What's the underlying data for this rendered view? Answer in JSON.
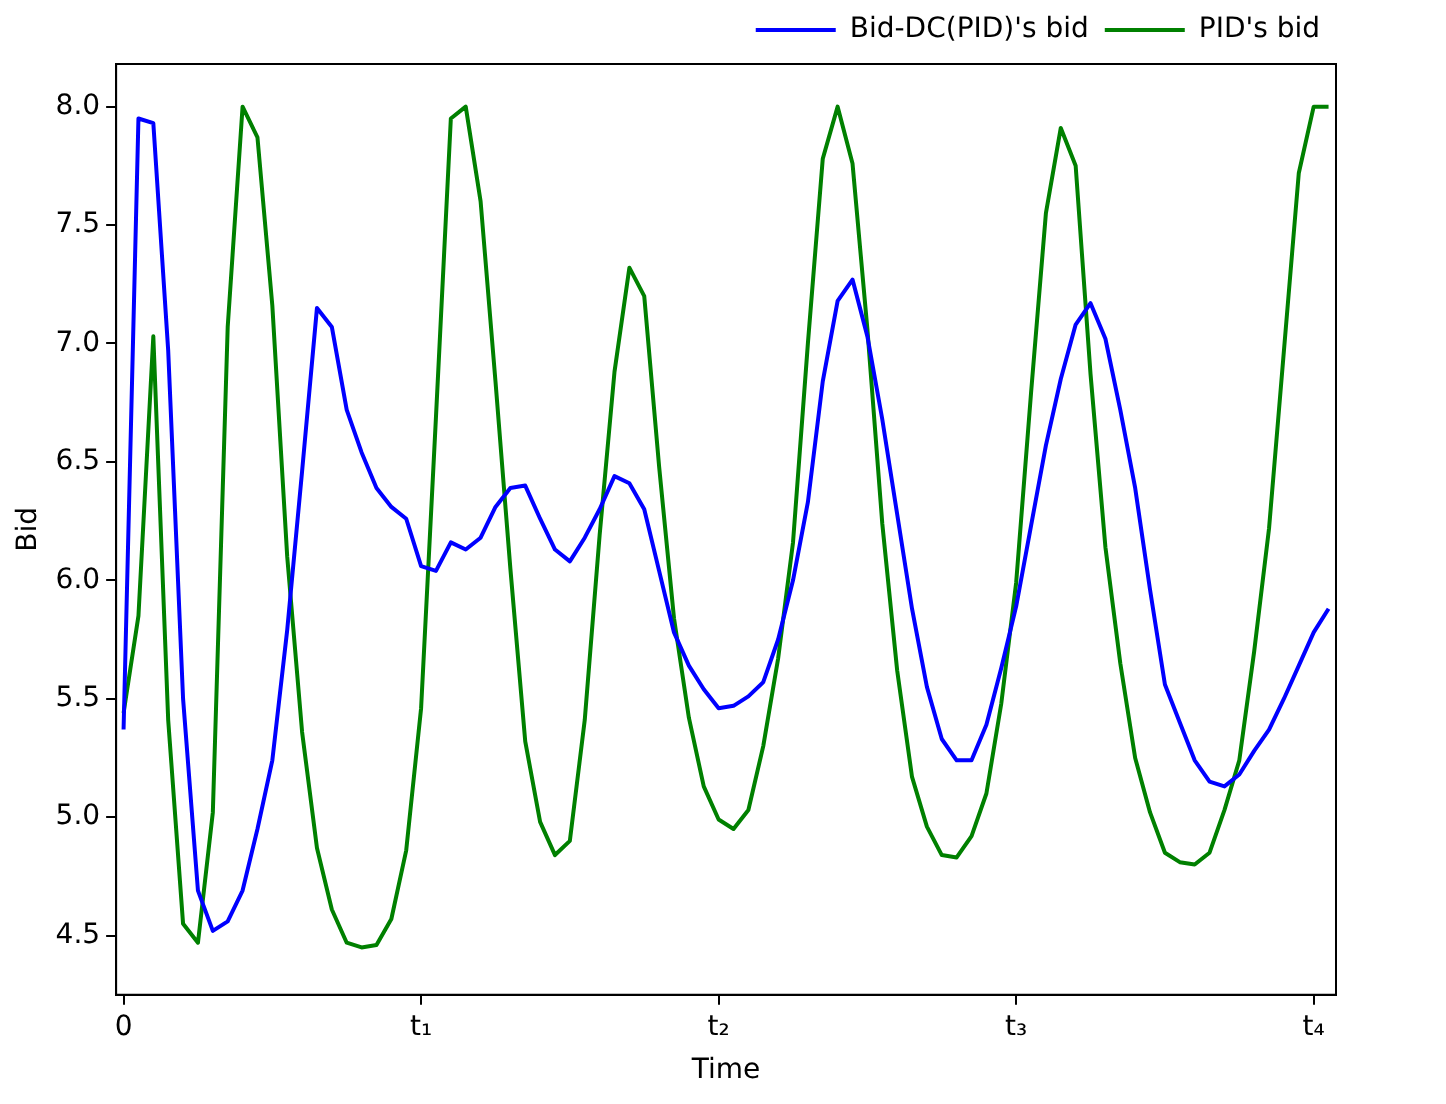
{
  "chart_data": {
    "type": "line",
    "xlabel": "Time",
    "ylabel": "Bid",
    "ylim": [
      4.25,
      8.18
    ],
    "categories": [
      "0",
      null,
      null,
      null,
      null,
      null,
      null,
      null,
      null,
      null,
      null,
      null,
      null,
      null,
      null,
      null,
      null,
      null,
      null,
      null,
      "t₁",
      null,
      null,
      null,
      null,
      null,
      null,
      null,
      null,
      null,
      null,
      null,
      null,
      null,
      null,
      null,
      null,
      null,
      null,
      null,
      "t₂",
      null,
      null,
      null,
      null,
      null,
      null,
      null,
      null,
      null,
      null,
      null,
      null,
      null,
      null,
      null,
      null,
      null,
      null,
      null,
      "t₃",
      null,
      null,
      null,
      null,
      null,
      null,
      null,
      null,
      null,
      null,
      null,
      null,
      null,
      null,
      null,
      null,
      null,
      null,
      null,
      "t₄",
      null
    ],
    "yticks": [
      4.5,
      {
        "value": 5,
        "label": "5.0"
      },
      5.5,
      {
        "value": 6,
        "label": "6.0"
      },
      6.5,
      {
        "value": 7,
        "label": "7.0"
      },
      7.5,
      {
        "value": 8,
        "label": "8.0"
      }
    ],
    "grid": false,
    "legend": "top right",
    "marker": "none",
    "line_style": "solid",
    "series": [
      {
        "name": "Bid-DC(PID)'s bid",
        "color": "#0000ff",
        "values": [
          5.37,
          7.95,
          7.93,
          6.97,
          5.5,
          4.69,
          4.52,
          4.56,
          4.69,
          4.95,
          5.24,
          5.79,
          6.46,
          7.15,
          7.07,
          6.72,
          6.54,
          6.39,
          6.31,
          6.26,
          6.06,
          6.04,
          6.16,
          6.13,
          6.18,
          6.31,
          6.39,
          6.4,
          6.26,
          6.13,
          6.08,
          6.18,
          6.3,
          6.44,
          6.41,
          6.3,
          6.04,
          5.78,
          5.64,
          5.54,
          5.46,
          5.47,
          5.51,
          5.57,
          5.75,
          6.0,
          6.33,
          6.84,
          7.18,
          7.27,
          7.03,
          6.68,
          6.28,
          5.88,
          5.55,
          5.33,
          5.24,
          5.24,
          5.39,
          5.63,
          5.89,
          6.23,
          6.57,
          6.85,
          7.08,
          7.17,
          7.02,
          6.72,
          6.39,
          5.96,
          5.56,
          5.4,
          5.24,
          5.15,
          5.13,
          5.18,
          5.28,
          5.37,
          5.5,
          5.64,
          5.78,
          5.88
        ]
      },
      {
        "name": "PID's bid",
        "color": "#008000",
        "values": [
          5.44,
          5.85,
          7.03,
          5.41,
          4.55,
          4.47,
          5.02,
          7.07,
          8.0,
          7.87,
          7.16,
          6.1,
          5.36,
          4.87,
          4.61,
          4.47,
          4.45,
          4.46,
          4.57,
          4.86,
          5.46,
          6.69,
          7.95,
          8.0,
          7.6,
          6.84,
          6.05,
          5.32,
          4.98,
          4.84,
          4.9,
          5.41,
          6.19,
          6.88,
          7.32,
          7.2,
          6.48,
          5.84,
          5.42,
          5.13,
          4.99,
          4.95,
          5.03,
          5.3,
          5.67,
          6.16,
          7.0,
          7.78,
          8.0,
          7.76,
          7.06,
          6.24,
          5.62,
          5.17,
          4.96,
          4.84,
          4.83,
          4.92,
          5.1,
          5.48,
          5.99,
          6.79,
          7.55,
          7.91,
          7.75,
          6.87,
          6.14,
          5.65,
          5.25,
          5.02,
          4.85,
          4.81,
          4.8,
          4.85,
          5.03,
          5.24,
          5.7,
          6.22,
          6.97,
          7.72,
          8.0,
          8.0
        ]
      }
    ]
  }
}
